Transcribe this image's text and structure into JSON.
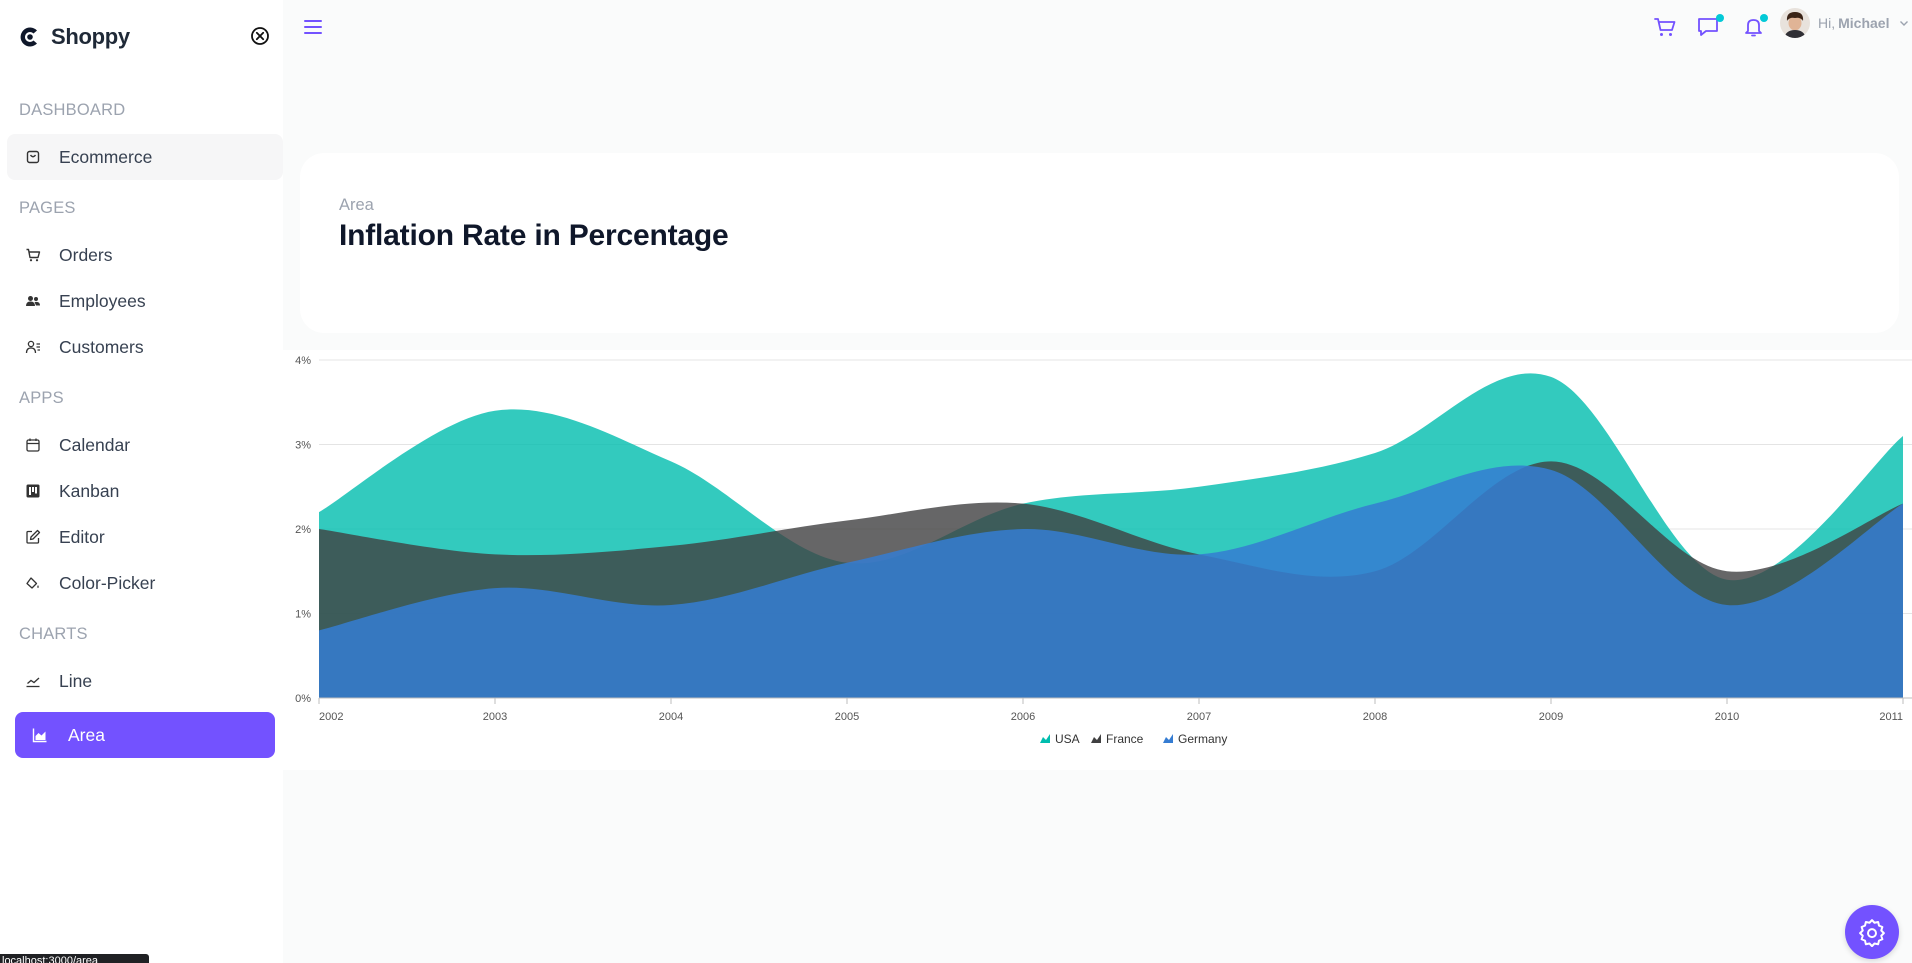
{
  "app": {
    "name": "Shoppy"
  },
  "sidebar": {
    "sections": [
      {
        "title": "DASHBOARD",
        "items": [
          {
            "label": "Ecommerce",
            "icon": "shopping-bag-icon"
          }
        ]
      },
      {
        "title": "PAGES",
        "items": [
          {
            "label": "Orders",
            "icon": "cart-icon"
          },
          {
            "label": "Employees",
            "icon": "people-icon"
          },
          {
            "label": "Customers",
            "icon": "customers-icon"
          }
        ]
      },
      {
        "title": "APPS",
        "items": [
          {
            "label": "Calendar",
            "icon": "calendar-icon"
          },
          {
            "label": "Kanban",
            "icon": "kanban-icon"
          },
          {
            "label": "Editor",
            "icon": "edit-icon"
          },
          {
            "label": "Color-Picker",
            "icon": "color-bucket-icon"
          }
        ]
      },
      {
        "title": "CHARTS",
        "items": [
          {
            "label": "Line",
            "icon": "line-chart-icon"
          },
          {
            "label": "Area",
            "icon": "area-chart-icon",
            "active": true
          }
        ]
      }
    ]
  },
  "status_tooltip": "localhost:3000/area",
  "header": {
    "greeting": "Hi,",
    "user_name": "Michael"
  },
  "page": {
    "category": "Area",
    "title": "Inflation Rate in Percentage"
  },
  "colors": {
    "accent": "#7352ff",
    "usa": "#00bdae",
    "france": "#404041",
    "germany": "#357cd2",
    "notify_dot": "#03c9d7"
  },
  "chart_data": {
    "type": "area",
    "x": [
      "2002",
      "2003",
      "2004",
      "2005",
      "2006",
      "2007",
      "2008",
      "2009",
      "2010",
      "2011"
    ],
    "ylim": [
      0,
      4
    ],
    "yticks": [
      "0%",
      "1%",
      "2%",
      "3%",
      "4%"
    ],
    "grid": true,
    "legend_position": "bottom",
    "series": [
      {
        "name": "USA",
        "values": [
          2.2,
          3.4,
          2.8,
          1.6,
          2.3,
          2.5,
          2.9,
          3.8,
          1.4,
          3.1
        ]
      },
      {
        "name": "France",
        "values": [
          2.0,
          1.7,
          1.8,
          2.1,
          2.3,
          1.7,
          1.5,
          2.8,
          1.5,
          2.3
        ]
      },
      {
        "name": "Germany",
        "values": [
          0.8,
          1.3,
          1.1,
          1.6,
          2.0,
          1.7,
          2.3,
          2.7,
          1.1,
          2.3
        ]
      }
    ]
  }
}
